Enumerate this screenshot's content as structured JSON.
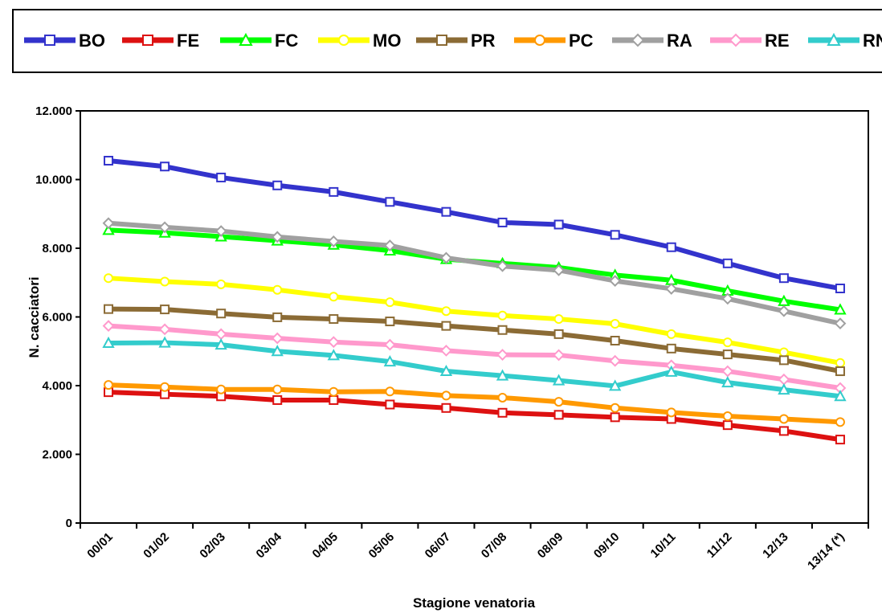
{
  "chart_data": {
    "type": "line",
    "categories": [
      "00/01",
      "01/02",
      "02/03",
      "03/04",
      "04/05",
      "05/06",
      "06/07",
      "07/08",
      "08/09",
      "09/10",
      "10/11",
      "11/12",
      "12/13",
      "13/14 (*)"
    ],
    "ylabel": "N. cacciatori",
    "xlabel": "Stagione venatoria",
    "ylim": [
      0,
      12000
    ],
    "yticks": [
      0,
      2000,
      4000,
      6000,
      8000,
      10000,
      12000
    ],
    "ytick_labels": [
      "0",
      "2.000",
      "4.000",
      "6.000",
      "8.000",
      "10.000",
      "12.000"
    ],
    "legend_position": "top",
    "grid": false,
    "series": [
      {
        "name": "BO",
        "color": "#3333cc",
        "marker": "square",
        "values": [
          10550,
          10380,
          10060,
          9830,
          9640,
          9350,
          9060,
          8750,
          8690,
          8390,
          8030,
          7560,
          7130,
          6830
        ]
      },
      {
        "name": "FE",
        "color": "#dd1111",
        "marker": "square",
        "values": [
          3810,
          3750,
          3690,
          3580,
          3580,
          3450,
          3350,
          3210,
          3150,
          3080,
          3030,
          2850,
          2680,
          2430
        ]
      },
      {
        "name": "FC",
        "color": "#00ff00",
        "marker": "triangle",
        "values": [
          8530,
          8450,
          8340,
          8220,
          8100,
          7930,
          7680,
          7560,
          7440,
          7220,
          7070,
          6760,
          6460,
          6210
        ]
      },
      {
        "name": "MO",
        "color": "#ffff00",
        "marker": "circle",
        "values": [
          7130,
          7030,
          6950,
          6790,
          6590,
          6430,
          6170,
          6040,
          5940,
          5800,
          5500,
          5260,
          4970,
          4660
        ]
      },
      {
        "name": "PR",
        "color": "#8b6b35",
        "marker": "square",
        "values": [
          6230,
          6220,
          6100,
          5990,
          5940,
          5870,
          5740,
          5620,
          5500,
          5310,
          5080,
          4910,
          4740,
          4420
        ]
      },
      {
        "name": "PC",
        "color": "#ff9900",
        "marker": "circle",
        "values": [
          4020,
          3960,
          3890,
          3890,
          3820,
          3830,
          3710,
          3650,
          3530,
          3350,
          3220,
          3110,
          3030,
          2940
        ]
      },
      {
        "name": "RA",
        "color": "#a0a0a0",
        "marker": "diamond",
        "values": [
          8730,
          8610,
          8500,
          8330,
          8200,
          8080,
          7720,
          7480,
          7360,
          7050,
          6820,
          6530,
          6170,
          5810
        ]
      },
      {
        "name": "RE",
        "color": "#ff99cc",
        "marker": "diamond",
        "values": [
          5740,
          5640,
          5500,
          5380,
          5270,
          5190,
          5020,
          4900,
          4890,
          4720,
          4590,
          4420,
          4180,
          3930
        ]
      },
      {
        "name": "RN",
        "color": "#33cccc",
        "marker": "triangle",
        "values": [
          5240,
          5250,
          5190,
          5000,
          4880,
          4700,
          4420,
          4290,
          4150,
          3990,
          4400,
          4090,
          3880,
          3690
        ]
      }
    ]
  }
}
